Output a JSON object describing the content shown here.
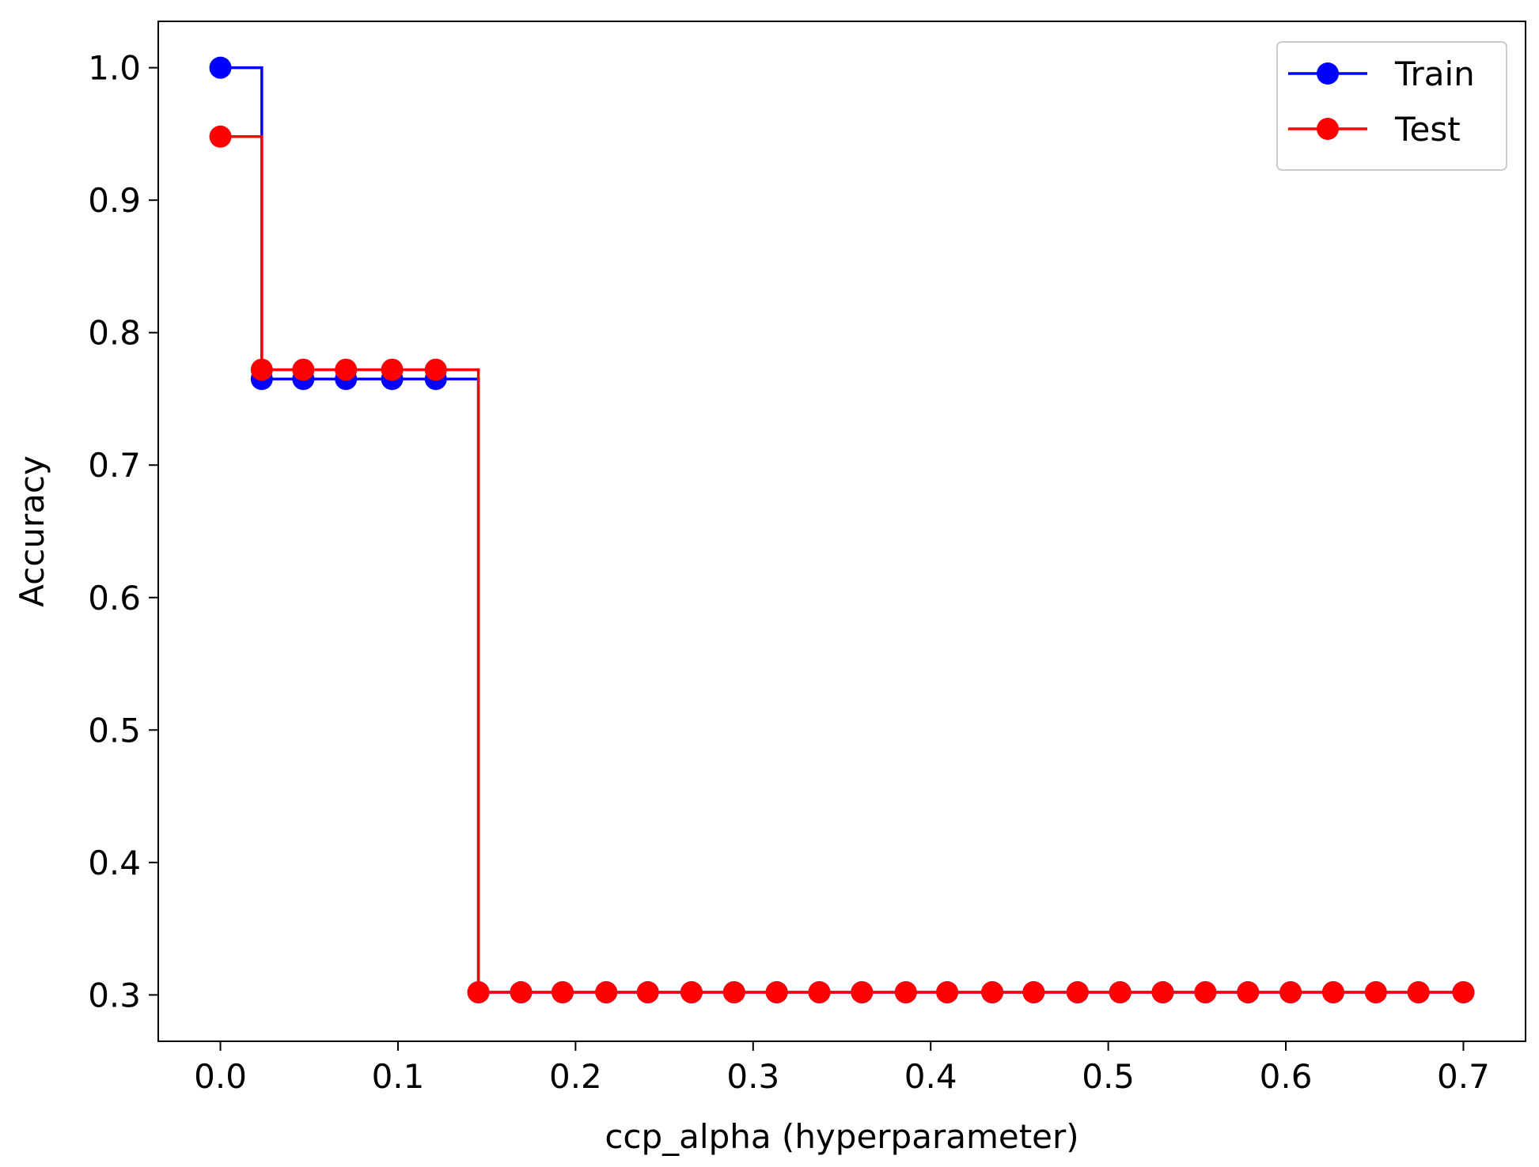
{
  "chart_data": {
    "type": "line",
    "drawstyle": "steps-post",
    "xlabel": "ccp_alpha (hyperparameter)",
    "ylabel": "Accuracy",
    "xlim": [
      -0.035,
      0.735
    ],
    "ylim": [
      0.265,
      1.035
    ],
    "xticks": [
      0.0,
      0.1,
      0.2,
      0.3,
      0.4,
      0.5,
      0.6,
      0.7
    ],
    "xtick_labels": [
      "0.0",
      "0.1",
      "0.2",
      "0.3",
      "0.4",
      "0.5",
      "0.6",
      "0.7"
    ],
    "yticks": [
      0.3,
      0.4,
      0.5,
      0.6,
      0.7,
      0.8,
      0.9,
      1.0
    ],
    "ytick_labels": [
      "0.3",
      "0.4",
      "0.5",
      "0.6",
      "0.7",
      "0.8",
      "0.9",
      "1.0"
    ],
    "legend_position": "top-right",
    "grid": false,
    "x": [
      0.0,
      0.0233,
      0.0467,
      0.0707,
      0.0967,
      0.1213,
      0.1453,
      0.1693,
      0.1927,
      0.2173,
      0.2407,
      0.2653,
      0.2893,
      0.3133,
      0.3373,
      0.3613,
      0.386,
      0.4093,
      0.4347,
      0.458,
      0.4827,
      0.5067,
      0.5307,
      0.5547,
      0.5787,
      0.6027,
      0.6267,
      0.6507,
      0.6747,
      0.7
    ],
    "series": [
      {
        "name": "Train",
        "color": "#0000ff",
        "values": [
          1.0,
          0.765,
          0.765,
          0.765,
          0.765,
          0.765,
          0.302,
          0.302,
          0.302,
          0.302,
          0.302,
          0.302,
          0.302,
          0.302,
          0.302,
          0.302,
          0.302,
          0.302,
          0.302,
          0.302,
          0.302,
          0.302,
          0.302,
          0.302,
          0.302,
          0.302,
          0.302,
          0.302,
          0.302,
          0.302
        ]
      },
      {
        "name": "Test",
        "color": "#ff0000",
        "values": [
          0.948,
          0.772,
          0.772,
          0.772,
          0.772,
          0.772,
          0.302,
          0.302,
          0.302,
          0.302,
          0.302,
          0.302,
          0.302,
          0.302,
          0.302,
          0.302,
          0.302,
          0.302,
          0.302,
          0.302,
          0.302,
          0.302,
          0.302,
          0.302,
          0.302,
          0.302,
          0.302,
          0.302,
          0.302,
          0.302
        ]
      }
    ]
  }
}
